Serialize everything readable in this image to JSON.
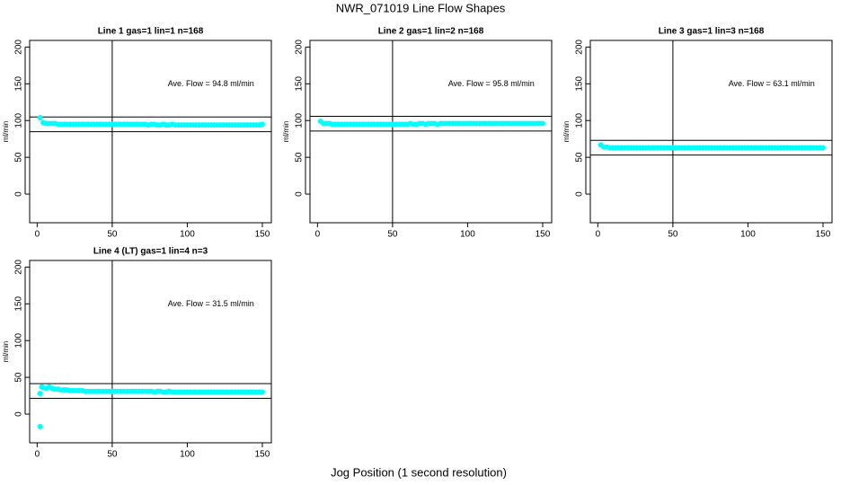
{
  "title": "NWR_071019 Line Flow Shapes",
  "x_label": "Jog Position (1 second resolution)",
  "chart_data": [
    {
      "type": "scatter",
      "title": "Line 1 gas=1 lin=1 n=168",
      "y_label": "ml/min",
      "annotation": "Ave. Flow = 94.8 ml/min",
      "xlim": [
        -5,
        156
      ],
      "ylim": [
        -39,
        209
      ],
      "xticks": [
        0,
        50,
        100,
        150
      ],
      "yticks": [
        0,
        50,
        100,
        150,
        200
      ],
      "hlines": [
        104.8,
        84.8
      ],
      "vline": 50,
      "color": "#00ffff",
      "x": [
        2,
        4,
        6,
        8,
        10,
        12,
        14,
        16,
        18,
        20,
        22,
        24,
        26,
        28,
        30,
        32,
        34,
        36,
        38,
        40,
        42,
        44,
        46,
        48,
        50,
        52,
        54,
        56,
        58,
        60,
        62,
        64,
        66,
        68,
        70,
        72,
        74,
        76,
        78,
        80,
        82,
        84,
        86,
        88,
        90,
        92,
        94,
        96,
        98,
        100,
        102,
        104,
        106,
        108,
        110,
        112,
        114,
        116,
        118,
        120,
        122,
        124,
        126,
        128,
        130,
        132,
        134,
        136,
        138,
        140,
        142,
        144,
        146,
        148,
        150
      ],
      "values": [
        104,
        97,
        96,
        96,
        96,
        96,
        95,
        95,
        95,
        95,
        95,
        95,
        95,
        95,
        95,
        95,
        95,
        95,
        95,
        95,
        95,
        95,
        95,
        95,
        95,
        95,
        95,
        95,
        95,
        95,
        95,
        95,
        95,
        95,
        95,
        95,
        94,
        95,
        95,
        94,
        94,
        95,
        94,
        94,
        95,
        94,
        94,
        94,
        94,
        94,
        94,
        94,
        94,
        94,
        94,
        94,
        94,
        94,
        94,
        94,
        94,
        94,
        94,
        94,
        94,
        94,
        94,
        94,
        94,
        94,
        94,
        94,
        94,
        94,
        95
      ]
    },
    {
      "type": "scatter",
      "title": "Line 2 gas=1 lin=2 n=168",
      "y_label": "ml/min",
      "annotation": "Ave. Flow = 95.8 ml/min",
      "xlim": [
        -5,
        156
      ],
      "ylim": [
        -39,
        209
      ],
      "xticks": [
        0,
        50,
        100,
        150
      ],
      "yticks": [
        0,
        50,
        100,
        150,
        200
      ],
      "hlines": [
        105.8,
        85.8
      ],
      "vline": 50,
      "color": "#00ffff",
      "x": [
        2,
        4,
        6,
        8,
        10,
        12,
        14,
        16,
        18,
        20,
        22,
        24,
        26,
        28,
        30,
        32,
        34,
        36,
        38,
        40,
        42,
        44,
        46,
        48,
        50,
        52,
        54,
        56,
        58,
        60,
        62,
        64,
        66,
        68,
        70,
        72,
        74,
        76,
        78,
        80,
        82,
        84,
        86,
        88,
        90,
        92,
        94,
        96,
        98,
        100,
        102,
        104,
        106,
        108,
        110,
        112,
        114,
        116,
        118,
        120,
        122,
        124,
        126,
        128,
        130,
        132,
        134,
        136,
        138,
        140,
        142,
        144,
        146,
        148,
        150
      ],
      "values": [
        99,
        96,
        96,
        96,
        95,
        95,
        95,
        95,
        95,
        95,
        95,
        95,
        95,
        95,
        95,
        95,
        95,
        95,
        95,
        95,
        95,
        95,
        95,
        95,
        95,
        95,
        95,
        95,
        95,
        95,
        96,
        95,
        95,
        96,
        96,
        95,
        96,
        96,
        96,
        95,
        96,
        96,
        96,
        96,
        96,
        96,
        96,
        96,
        96,
        96,
        96,
        96,
        96,
        96,
        96,
        96,
        96,
        96,
        96,
        96,
        96,
        96,
        96,
        96,
        96,
        96,
        96,
        96,
        96,
        96,
        96,
        96,
        96,
        96,
        96
      ]
    },
    {
      "type": "scatter",
      "title": "Line 3 gas=1 lin=3 n=168",
      "y_label": "ml/min",
      "annotation": "Ave. Flow = 63.1 ml/min",
      "xlim": [
        -5,
        156
      ],
      "ylim": [
        -39,
        209
      ],
      "xticks": [
        0,
        50,
        100,
        150
      ],
      "yticks": [
        0,
        50,
        100,
        150,
        200
      ],
      "hlines": [
        73.1,
        53.1
      ],
      "vline": 50,
      "color": "#00ffff",
      "x": [
        2,
        4,
        6,
        8,
        10,
        12,
        14,
        16,
        18,
        20,
        22,
        24,
        26,
        28,
        30,
        32,
        34,
        36,
        38,
        40,
        42,
        44,
        46,
        48,
        50,
        52,
        54,
        56,
        58,
        60,
        62,
        64,
        66,
        68,
        70,
        72,
        74,
        76,
        78,
        80,
        82,
        84,
        86,
        88,
        90,
        92,
        94,
        96,
        98,
        100,
        102,
        104,
        106,
        108,
        110,
        112,
        114,
        116,
        118,
        120,
        122,
        124,
        126,
        128,
        130,
        132,
        134,
        136,
        138,
        140,
        142,
        144,
        146,
        148,
        150
      ],
      "values": [
        67,
        64,
        64,
        63,
        63,
        63,
        63,
        63,
        63,
        63,
        63,
        63,
        63,
        63,
        63,
        63,
        63,
        63,
        63,
        63,
        63,
        63,
        63,
        63,
        63,
        63,
        63,
        63,
        63,
        63,
        63,
        63,
        63,
        63,
        63,
        63,
        63,
        63,
        63,
        63,
        63,
        63,
        63,
        63,
        63,
        63,
        63,
        63,
        63,
        63,
        63,
        63,
        63,
        63,
        63,
        63,
        63,
        63,
        63,
        63,
        63,
        63,
        63,
        63,
        63,
        63,
        63,
        63,
        63,
        63,
        63,
        63,
        63,
        63,
        63
      ]
    },
    {
      "type": "scatter",
      "title": "Line 4 (LT) gas=1 lin=4 n=3",
      "y_label": "ml/min",
      "annotation": "Ave. Flow = 31.5 ml/min",
      "xlim": [
        -5,
        156
      ],
      "ylim": [
        -39,
        209
      ],
      "xticks": [
        0,
        50,
        100,
        150
      ],
      "yticks": [
        0,
        50,
        100,
        150,
        200
      ],
      "hlines": [
        41.5,
        21.5
      ],
      "vline": 50,
      "color": "#00ffff",
      "x": [
        2,
        2,
        3,
        4,
        6,
        8,
        10,
        12,
        14,
        16,
        18,
        20,
        22,
        24,
        26,
        28,
        30,
        32,
        34,
        36,
        38,
        40,
        42,
        44,
        46,
        48,
        50,
        52,
        54,
        56,
        58,
        60,
        62,
        64,
        66,
        68,
        70,
        72,
        74,
        76,
        78,
        80,
        82,
        84,
        86,
        88,
        90,
        92,
        94,
        96,
        98,
        100,
        102,
        104,
        106,
        108,
        110,
        112,
        114,
        116,
        118,
        120,
        122,
        124,
        126,
        128,
        130,
        132,
        134,
        136,
        138,
        140,
        142,
        144,
        146,
        148,
        150
      ],
      "values": [
        -17,
        28,
        37,
        36,
        35,
        37,
        35,
        34,
        34,
        33,
        33,
        33,
        32,
        32,
        32,
        32,
        32,
        31,
        31,
        31,
        31,
        31,
        31,
        31,
        31,
        31,
        31,
        31,
        31,
        31,
        31,
        31,
        31,
        31,
        31,
        31,
        31,
        31,
        31,
        31,
        30,
        31,
        31,
        30,
        30,
        31,
        30,
        30,
        30,
        30,
        30,
        30,
        30,
        30,
        30,
        30,
        30,
        30,
        30,
        30,
        30,
        30,
        30,
        30,
        30,
        30,
        30,
        30,
        30,
        30,
        30,
        30,
        30,
        30,
        30,
        30,
        30
      ]
    }
  ]
}
